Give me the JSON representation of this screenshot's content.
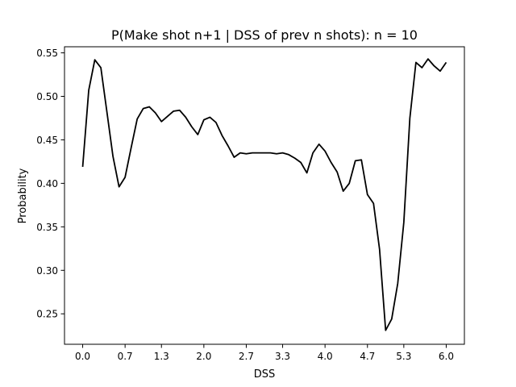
{
  "chart_data": {
    "type": "line",
    "title": "P(Make shot n+1 | DSS of prev n shots): n = 10",
    "xlabel": "DSS",
    "ylabel": "Probability",
    "xlim": [
      -0.3,
      6.3
    ],
    "ylim": [
      0.215,
      0.557
    ],
    "x_ticks": [
      0.0,
      0.7,
      1.3,
      2.0,
      2.7,
      3.3,
      4.0,
      4.7,
      5.3,
      6.0
    ],
    "x_tick_labels": [
      "0.0",
      "0.7",
      "1.3",
      "2.0",
      "2.7",
      "3.3",
      "4.0",
      "4.7",
      "5.3",
      "6.0"
    ],
    "y_ticks": [
      0.25,
      0.3,
      0.35,
      0.4,
      0.45,
      0.5,
      0.55
    ],
    "y_tick_labels": [
      "0.25",
      "0.30",
      "0.35",
      "0.40",
      "0.45",
      "0.50",
      "0.55"
    ],
    "grid": false,
    "line_color": "#000000",
    "series": [
      {
        "x": [
          0.0,
          0.1,
          0.2,
          0.3,
          0.4,
          0.5,
          0.6,
          0.7,
          0.8,
          0.9,
          1.0,
          1.1,
          1.2,
          1.3,
          1.4,
          1.5,
          1.6,
          1.7,
          1.8,
          1.9,
          2.0,
          2.1,
          2.2,
          2.3,
          2.4,
          2.5,
          2.6,
          2.7,
          2.8,
          2.9,
          3.0,
          3.1,
          3.2,
          3.3,
          3.4,
          3.5,
          3.6,
          3.7,
          3.8,
          3.9,
          4.0,
          4.1,
          4.2,
          4.3,
          4.4,
          4.5,
          4.6,
          4.7,
          4.8,
          4.9,
          5.0,
          5.1,
          5.2,
          5.3,
          5.4,
          5.5,
          5.6,
          5.7,
          5.8,
          5.9,
          6.0
        ],
        "values": [
          0.419,
          0.507,
          0.542,
          0.533,
          0.482,
          0.431,
          0.396,
          0.407,
          0.441,
          0.474,
          0.486,
          0.488,
          0.481,
          0.471,
          0.477,
          0.483,
          0.484,
          0.476,
          0.465,
          0.456,
          0.473,
          0.476,
          0.47,
          0.455,
          0.443,
          0.43,
          0.435,
          0.434,
          0.435,
          0.435,
          0.435,
          0.435,
          0.434,
          0.435,
          0.433,
          0.429,
          0.424,
          0.412,
          0.435,
          0.445,
          0.437,
          0.424,
          0.413,
          0.391,
          0.4,
          0.426,
          0.427,
          0.387,
          0.377,
          0.324,
          0.231,
          0.244,
          0.285,
          0.355,
          0.475,
          0.539,
          0.533,
          0.543,
          0.535,
          0.529,
          0.539
        ]
      }
    ]
  }
}
